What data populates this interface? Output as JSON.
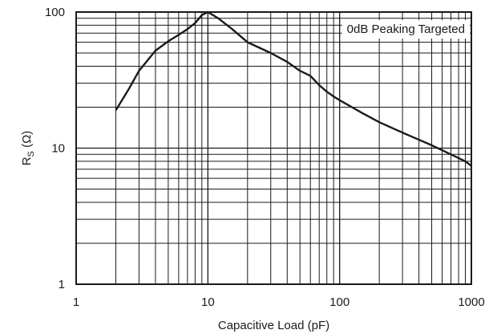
{
  "chart_data": {
    "type": "line",
    "title": "",
    "xlabel": "Capacitive Load (pF)",
    "ylabel": {
      "main": "R",
      "sub": "S",
      "unit": " (Ω)"
    },
    "x_scale": "log",
    "y_scale": "log",
    "xlim": [
      1,
      1000
    ],
    "ylim": [
      1,
      100
    ],
    "x_ticks": [
      {
        "value": 1,
        "label": "1"
      },
      {
        "value": 10,
        "label": "10"
      },
      {
        "value": 100,
        "label": "100"
      },
      {
        "value": 1000,
        "label": "1000"
      }
    ],
    "y_ticks": [
      {
        "value": 1,
        "label": "1"
      },
      {
        "value": 10,
        "label": "10"
      },
      {
        "value": 100,
        "label": "100"
      }
    ],
    "grid": true,
    "annotation": "0dB Peaking Targeted",
    "series": [
      {
        "color": "#1a1a1a",
        "x": [
          2,
          2.5,
          3,
          4,
          5,
          6,
          7,
          8,
          9,
          10,
          12,
          15,
          20,
          30,
          40,
          50,
          60,
          70,
          80,
          90,
          100,
          150,
          200,
          300,
          500,
          700,
          900,
          1000
        ],
        "y": [
          19,
          27,
          37,
          52,
          61,
          68,
          75,
          83,
          95,
          100,
          90,
          76,
          60,
          50,
          43,
          37,
          34,
          29,
          26,
          24,
          22.5,
          18,
          15.5,
          13,
          10.5,
          9,
          8,
          7.4
        ]
      }
    ]
  }
}
